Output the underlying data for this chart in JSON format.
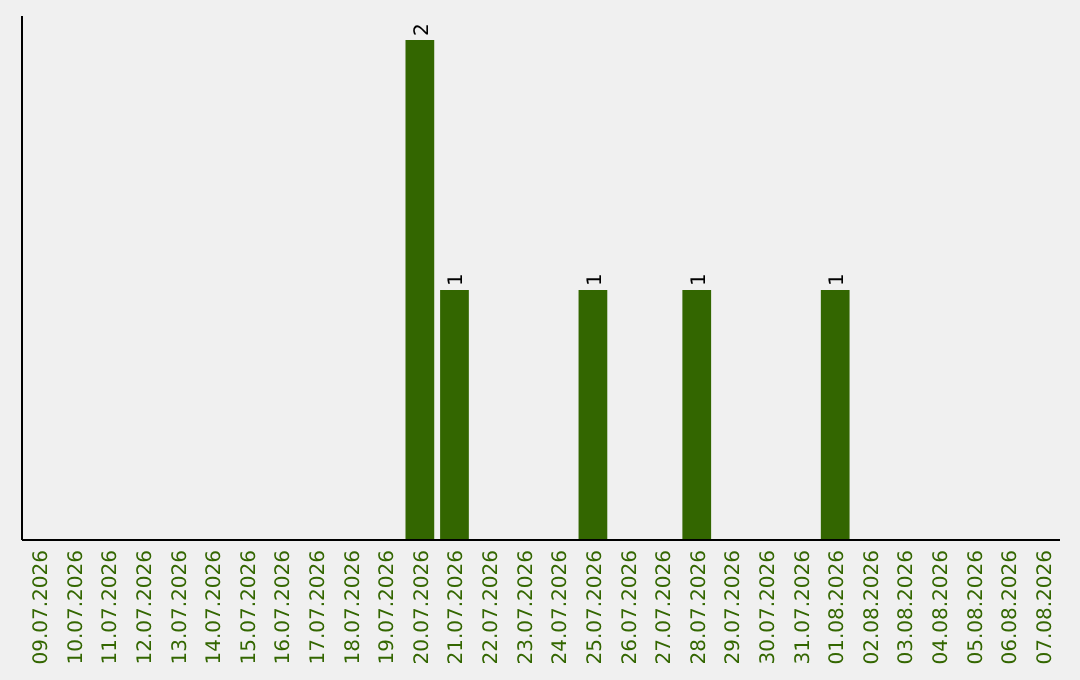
{
  "chart_data": {
    "type": "bar",
    "categories": [
      "09.07.2026",
      "10.07.2026",
      "11.07.2026",
      "12.07.2026",
      "13.07.2026",
      "14.07.2026",
      "15.07.2026",
      "16.07.2026",
      "17.07.2026",
      "18.07.2026",
      "19.07.2026",
      "20.07.2026",
      "21.07.2026",
      "22.07.2026",
      "23.07.2026",
      "24.07.2026",
      "25.07.2026",
      "26.07.2026",
      "27.07.2026",
      "28.07.2026",
      "29.07.2026",
      "30.07.2026",
      "31.07.2026",
      "01.08.2026",
      "02.08.2026",
      "03.08.2026",
      "04.08.2026",
      "05.08.2026",
      "06.08.2026",
      "07.08.2026"
    ],
    "values": [
      0,
      0,
      0,
      0,
      0,
      0,
      0,
      0,
      0,
      0,
      0,
      2,
      1,
      0,
      0,
      0,
      1,
      0,
      0,
      1,
      0,
      0,
      0,
      1,
      0,
      0,
      0,
      0,
      0,
      0
    ],
    "value_labels": [
      null,
      null,
      null,
      null,
      null,
      null,
      null,
      null,
      null,
      null,
      null,
      "2",
      "1",
      null,
      null,
      null,
      "1",
      null,
      null,
      "1",
      null,
      null,
      null,
      "1",
      null,
      null,
      null,
      null,
      null,
      null
    ],
    "color": "#336600"
  }
}
